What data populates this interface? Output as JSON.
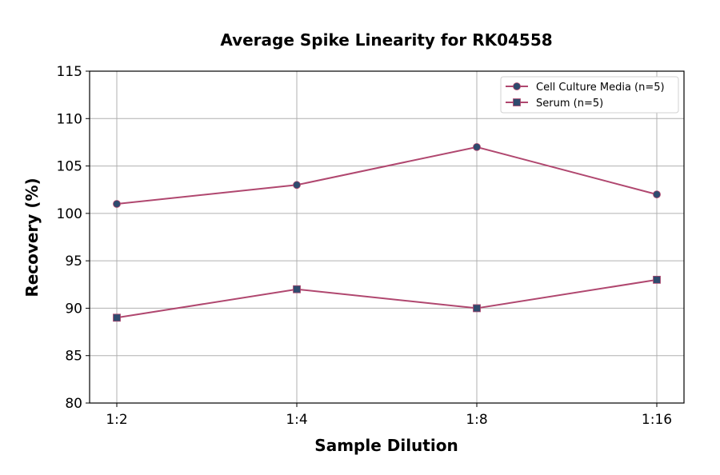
{
  "chart_data": {
    "type": "line",
    "title": "Average Spike Linearity for RK04558",
    "xlabel": "Sample Dilution",
    "ylabel": "Recovery (%)",
    "categories": [
      "1:2",
      "1:4",
      "1:8",
      "1:16"
    ],
    "ylim": [
      80,
      115
    ],
    "yticks": [
      80,
      85,
      90,
      95,
      100,
      105,
      110,
      115
    ],
    "grid": true,
    "legend_position": "top-right",
    "series": [
      {
        "name": "Cell Culture Media (n=5)",
        "values": [
          101,
          103,
          107,
          102
        ],
        "marker": "circle"
      },
      {
        "name": "Serum (n=5)",
        "values": [
          89,
          92,
          90,
          93
        ],
        "marker": "square"
      }
    ],
    "colors": {
      "line": "#b0476f",
      "marker": "#2f4b6e",
      "grid": "#b0b0b0"
    }
  }
}
